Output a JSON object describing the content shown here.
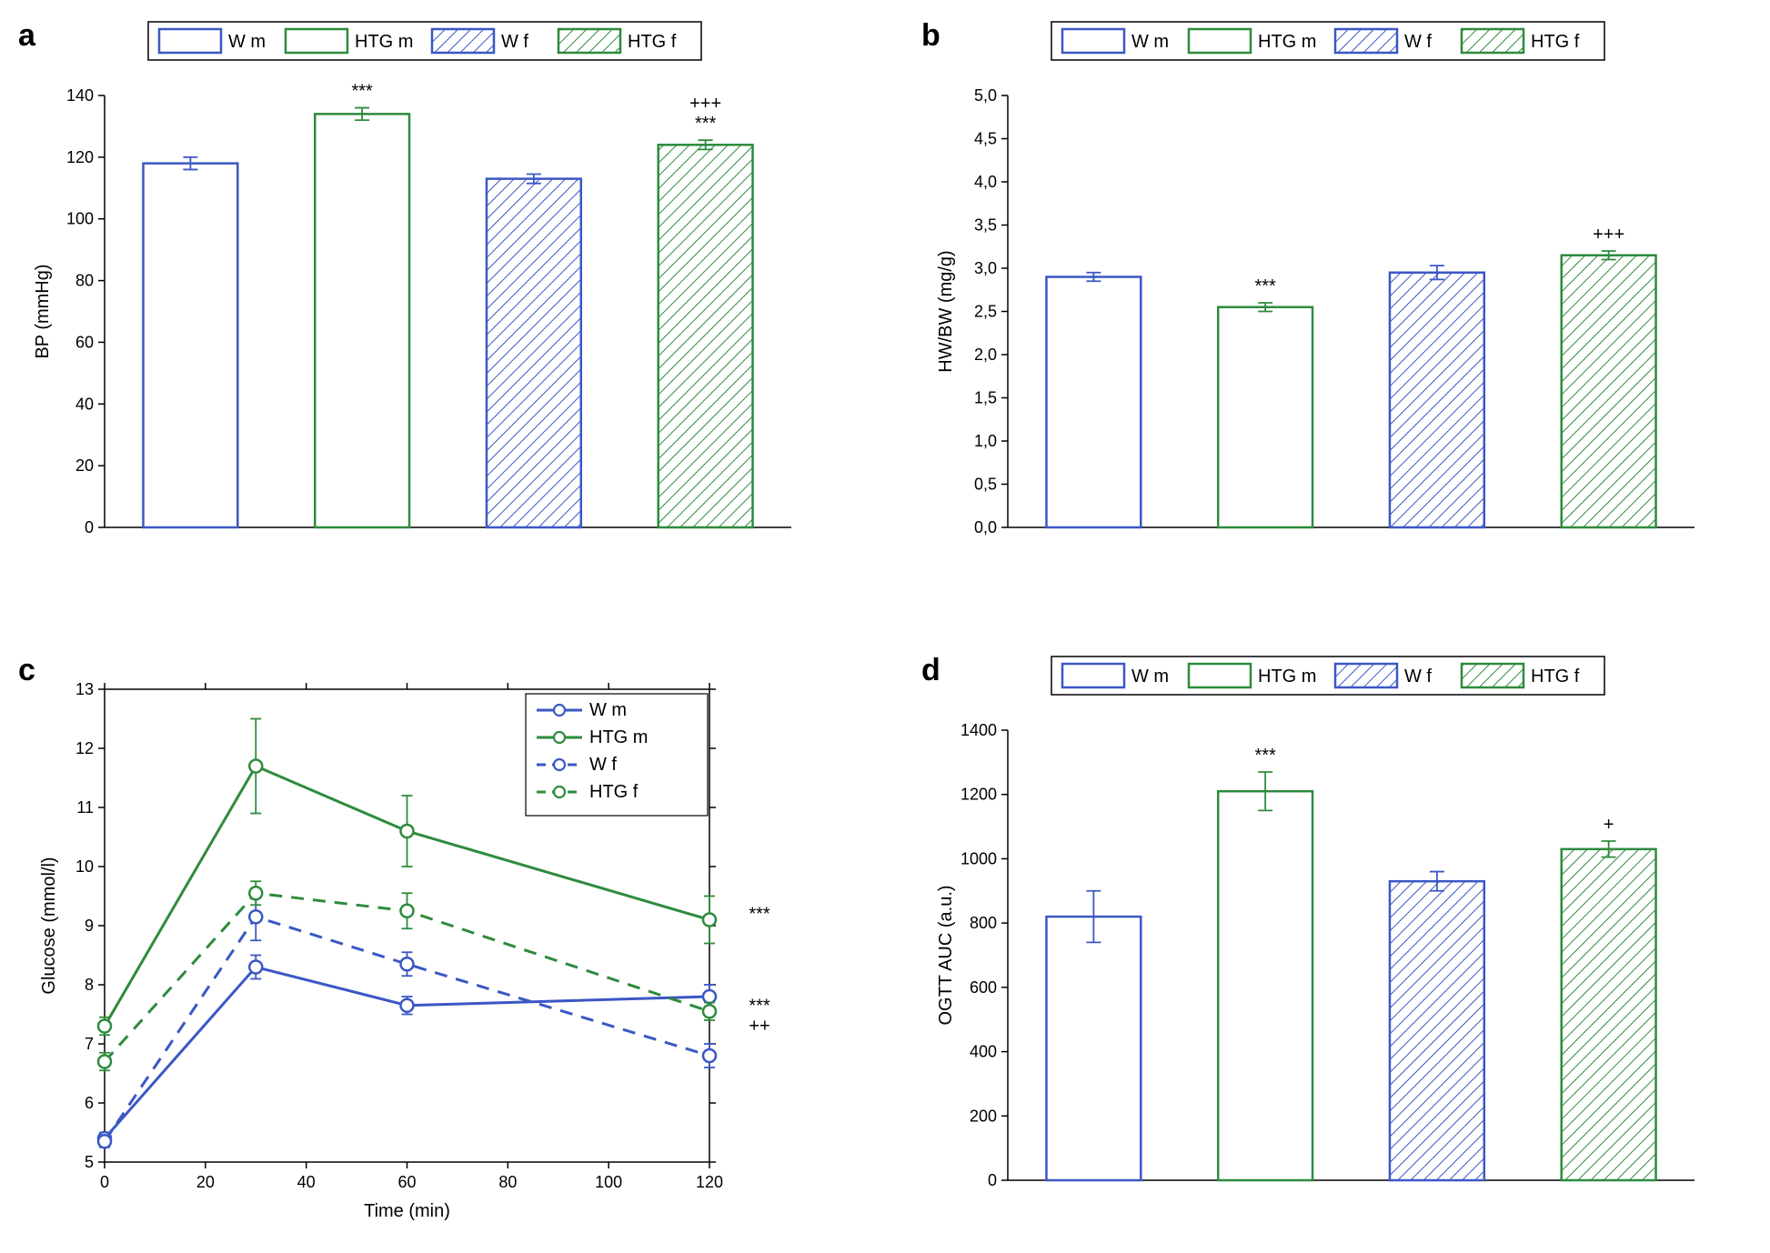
{
  "colors": {
    "blue": "#3b57c4",
    "green": "#2e8b3d",
    "black": "#000000",
    "bg": "#ffffff"
  },
  "legend": {
    "items": [
      "W m",
      "HTG m",
      "W f",
      "HTG f"
    ]
  },
  "panelA": {
    "label": "a",
    "type": "bar",
    "ylabel": "BP (mmHg)",
    "ylim": [
      0,
      140
    ],
    "ytick_step": 20,
    "categories": [
      "W m",
      "HTG m",
      "W f",
      "HTG f"
    ],
    "values": [
      118,
      134,
      113,
      124
    ],
    "errors": [
      2,
      2,
      1.5,
      1.5
    ],
    "sig": [
      "",
      "***",
      "",
      "+++\n***"
    ]
  },
  "panelB": {
    "label": "b",
    "type": "bar",
    "ylabel": "HW/BW (mg/g)",
    "ylim": [
      0.0,
      5.0
    ],
    "ytick_step": 0.5,
    "categories": [
      "W m",
      "HTG m",
      "W f",
      "HTG f"
    ],
    "values": [
      2.9,
      2.55,
      2.95,
      3.15
    ],
    "errors": [
      0.05,
      0.05,
      0.08,
      0.05
    ],
    "sig": [
      "",
      "***",
      "",
      "+++"
    ]
  },
  "panelC": {
    "label": "c",
    "type": "line",
    "ylabel": "Glucose (mmol/l)",
    "xlabel": "Time (min)",
    "xlim": [
      0,
      120
    ],
    "xtick_step": 20,
    "ylim": [
      5,
      13
    ],
    "ytick_step": 1,
    "x": [
      0,
      30,
      60,
      120
    ],
    "series": [
      {
        "name": "W m",
        "color": "blue",
        "dash": false,
        "y": [
          5.4,
          8.3,
          7.65,
          7.8
        ],
        "err": [
          0.1,
          0.2,
          0.15,
          0.2
        ]
      },
      {
        "name": "HTG m",
        "color": "green",
        "dash": false,
        "y": [
          7.3,
          11.7,
          10.6,
          9.1
        ],
        "err": [
          0.15,
          0.8,
          0.6,
          0.4
        ]
      },
      {
        "name": "W f",
        "color": "blue",
        "dash": true,
        "y": [
          5.35,
          9.15,
          8.35,
          6.8
        ],
        "err": [
          0.1,
          0.4,
          0.2,
          0.2
        ]
      },
      {
        "name": "HTG f",
        "color": "green",
        "dash": true,
        "y": [
          6.7,
          9.55,
          9.25,
          7.55
        ],
        "err": [
          0.15,
          0.2,
          0.3,
          0.15
        ]
      }
    ],
    "end_sig": [
      "***",
      "***\n++"
    ]
  },
  "panelD": {
    "label": "d",
    "type": "bar",
    "ylabel": "OGTT AUC (a.u.)",
    "ylim": [
      0,
      1400
    ],
    "ytick_step": 200,
    "categories": [
      "W m",
      "HTG m",
      "W f",
      "HTG f"
    ],
    "values": [
      820,
      1210,
      930,
      1030
    ],
    "errors": [
      80,
      60,
      30,
      25
    ],
    "sig": [
      "",
      "***",
      "",
      "+"
    ]
  }
}
